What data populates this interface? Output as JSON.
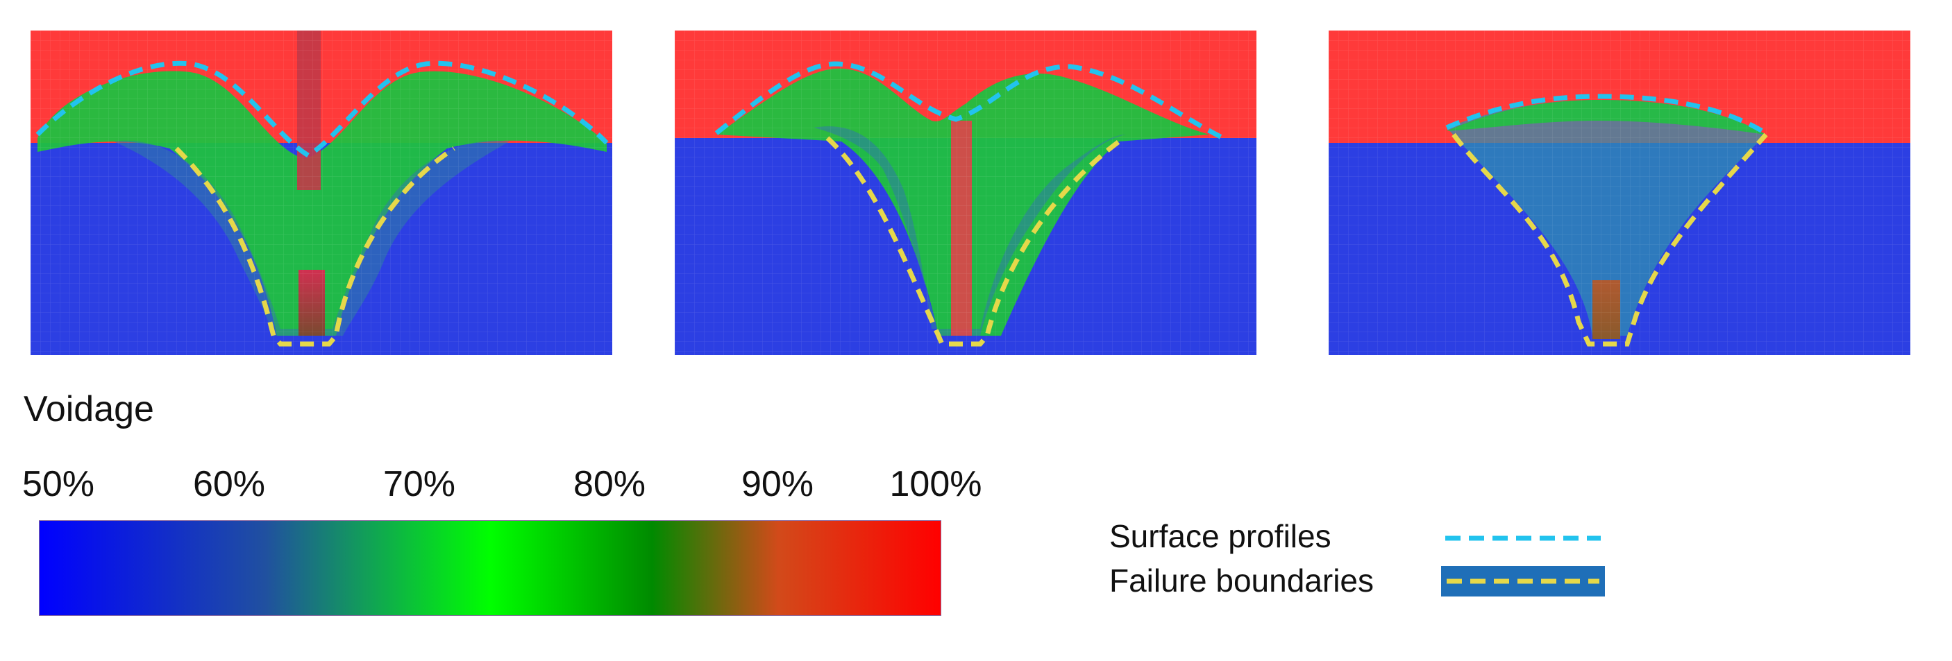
{
  "panels": [
    {
      "id": "cavity-1"
    },
    {
      "id": "cavity-2"
    },
    {
      "id": "cavity-3"
    }
  ],
  "legend": {
    "title": "Voidage",
    "ticks": [
      "50%",
      "60%",
      "70%",
      "80%",
      "90%",
      "100%"
    ],
    "colors": [
      "#0000ff",
      "#2050a0",
      "#00ff00",
      "#008a00",
      "#d24a1a",
      "#ff0000"
    ]
  },
  "key": {
    "surface_label": "Surface profiles",
    "failure_label": "Failure boundaries",
    "surface_color": "#22c3ee",
    "failure_color": "#e6d84a"
  },
  "colors": {
    "voidage_high": "#ff3a3a",
    "voidage_low": "#2c3fe3",
    "transition": "#10e030"
  }
}
